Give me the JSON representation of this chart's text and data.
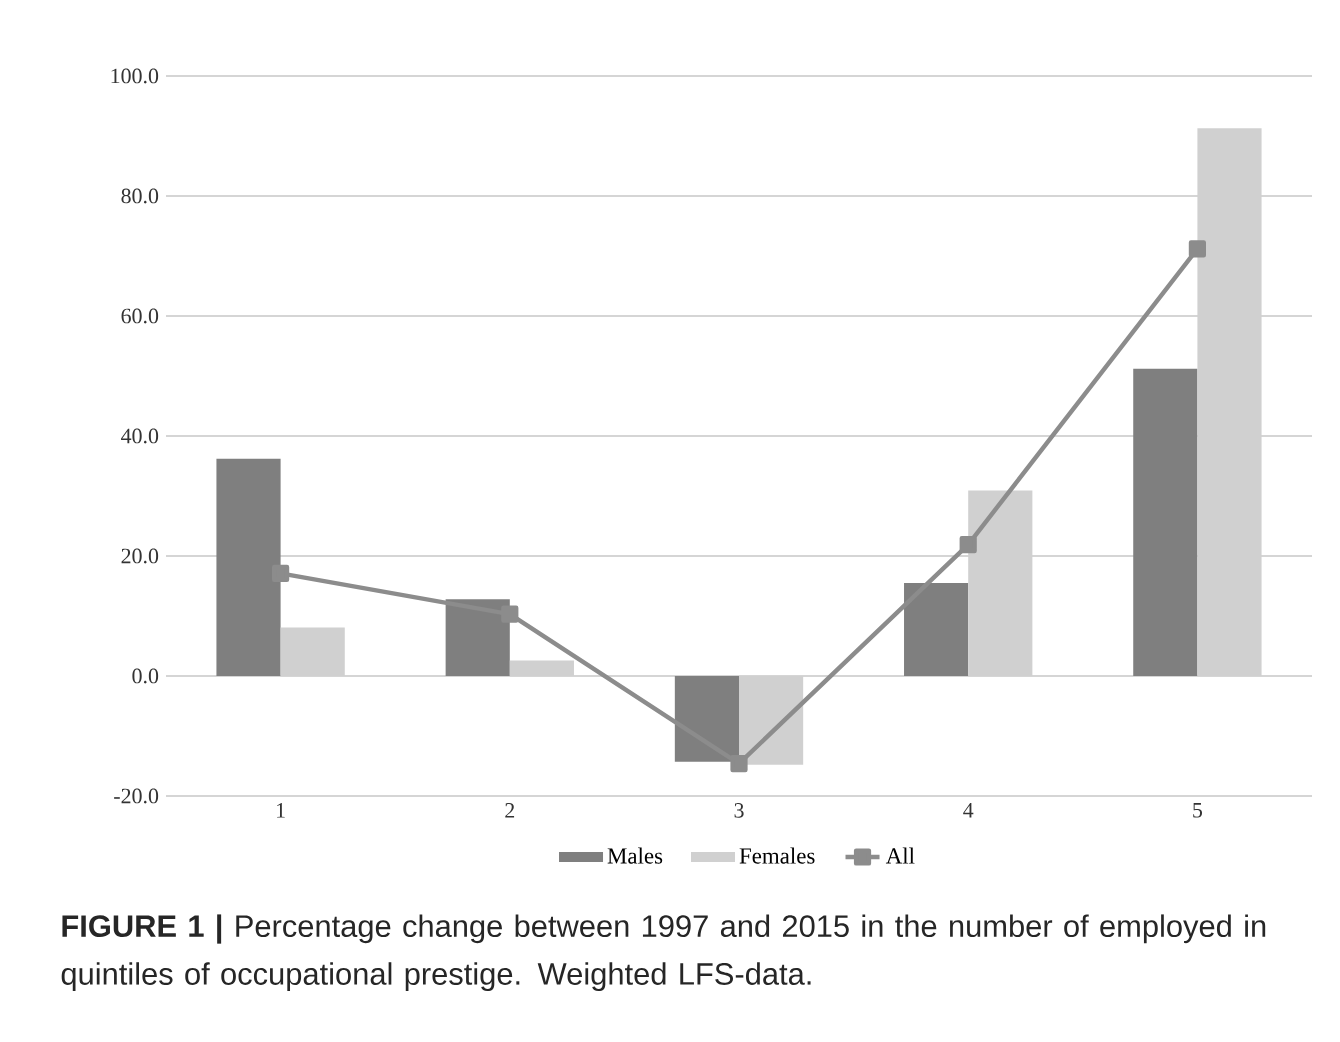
{
  "chart_data": {
    "type": "bar",
    "categories": [
      "1",
      "2",
      "3",
      "4",
      "5"
    ],
    "series": [
      {
        "name": "Males",
        "color": "#7f7f7f",
        "values": [
          36.2,
          12.8,
          -14.3,
          15.5,
          51.2
        ]
      },
      {
        "name": "Females",
        "color": "#d0d0d0",
        "values": [
          8.1,
          2.6,
          -14.8,
          30.9,
          91.3
        ]
      },
      {
        "name": "All",
        "type": "line",
        "color": "#8c8c8c",
        "marker": "square",
        "line_style": "solid",
        "values": [
          17.1,
          10.3,
          -14.6,
          21.9,
          71.2
        ]
      }
    ],
    "ylim": [
      -20,
      100
    ],
    "yticks": [
      {
        "value": -20,
        "label": "-20.0"
      },
      {
        "value": 0,
        "label": "0.0"
      },
      {
        "value": 20,
        "label": "20.0"
      },
      {
        "value": 40,
        "label": "40.0"
      },
      {
        "value": 60,
        "label": "60.0"
      },
      {
        "value": 80,
        "label": "80.0"
      },
      {
        "value": 100,
        "label": "100.0"
      }
    ],
    "grid": "y",
    "legend": "bottom",
    "annotations": [
      "**FIGURE 1 |** Percentage change between 1997 and 2015 in the number of employed in quintiles of occupational prestige. Weighted LFS-data."
    ]
  }
}
